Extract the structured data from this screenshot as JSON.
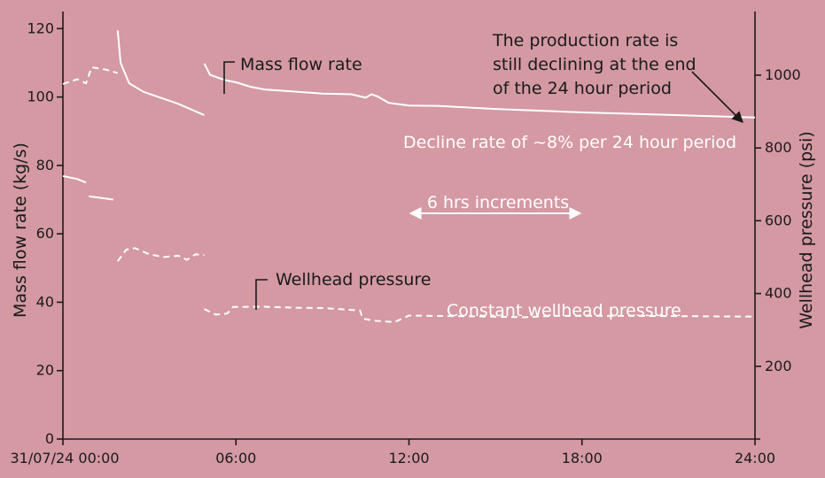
{
  "chart_data": {
    "type": "line",
    "x_axis": {
      "label": "",
      "range_hours": [
        0,
        24
      ],
      "ticks": [
        {
          "hour": 0,
          "label": "31/07/24 00:00"
        },
        {
          "hour": 6,
          "label": "06:00"
        },
        {
          "hour": 12,
          "label": "12:00"
        },
        {
          "hour": 18,
          "label": "18:00"
        },
        {
          "hour": 24,
          "label": "24:00"
        }
      ]
    },
    "y_left": {
      "label": "Mass flow rate (kg/s)",
      "range": [
        0,
        125
      ],
      "ticks": [
        0,
        20,
        40,
        60,
        80,
        100,
        120
      ]
    },
    "y_right": {
      "label": "Wellhead pressure (psi)",
      "range": [
        0,
        1175
      ],
      "ticks": [
        200,
        400,
        600,
        800,
        1000
      ]
    },
    "series": [
      {
        "name": "Mass flow rate",
        "axis": "left",
        "style": "solid",
        "segments": [
          [
            [
              0,
              76.9
            ],
            [
              0.5,
              76.0
            ],
            [
              0.8,
              75.0
            ]
          ],
          [
            [
              0.9,
              71.0
            ],
            [
              1.75,
              70.0
            ]
          ],
          [
            [
              1.9,
              119.5
            ],
            [
              2.0,
              110.0
            ],
            [
              2.3,
              104.0
            ],
            [
              2.8,
              101.5
            ],
            [
              4.0,
              98.0
            ],
            [
              4.9,
              94.7
            ]
          ],
          [
            [
              4.9,
              109.8
            ],
            [
              5.1,
              106.5
            ],
            [
              5.6,
              105.0
            ],
            [
              6.0,
              104.3
            ],
            [
              6.5,
              103.0
            ],
            [
              7.0,
              102.2
            ],
            [
              8.0,
              101.6
            ],
            [
              9.0,
              101.0
            ],
            [
              10.0,
              100.8
            ],
            [
              10.5,
              99.8
            ],
            [
              10.7,
              100.8
            ],
            [
              10.9,
              100.2
            ],
            [
              11.3,
              98.3
            ],
            [
              12.0,
              97.5
            ],
            [
              13.0,
              97.4
            ],
            [
              15.0,
              96.5
            ],
            [
              18.0,
              95.5
            ],
            [
              21.0,
              94.8
            ],
            [
              24.0,
              94.0
            ]
          ]
        ]
      },
      {
        "name": "Wellhead pressure",
        "axis": "left",
        "style": "dashed",
        "segments": [
          [
            [
              0,
              103.8
            ],
            [
              0.5,
              105.2
            ],
            [
              0.8,
              104.0
            ],
            [
              1.0,
              108.7
            ],
            [
              1.5,
              108.0
            ],
            [
              1.9,
              107.0
            ]
          ],
          [
            [
              1.9,
              52.0
            ],
            [
              2.2,
              55.4
            ],
            [
              2.5,
              55.8
            ],
            [
              3.0,
              54.0
            ],
            [
              3.5,
              53.2
            ],
            [
              4.0,
              53.6
            ],
            [
              4.3,
              52.4
            ],
            [
              4.6,
              54.0
            ],
            [
              4.9,
              53.8
            ]
          ],
          [
            [
              4.9,
              38.0
            ],
            [
              5.3,
              36.4
            ],
            [
              5.7,
              36.7
            ],
            [
              5.9,
              38.6
            ],
            [
              7.0,
              38.7
            ],
            [
              8.0,
              38.4
            ],
            [
              9.0,
              38.3
            ],
            [
              10.3,
              37.6
            ],
            [
              10.4,
              35.2
            ],
            [
              10.8,
              34.6
            ],
            [
              11.5,
              34.2
            ],
            [
              12.0,
              36.1
            ],
            [
              13.0,
              36.0
            ],
            [
              15.0,
              35.8
            ],
            [
              16.0,
              35.6
            ],
            [
              17.0,
              36.0
            ],
            [
              20.0,
              36.0
            ],
            [
              24.0,
              35.8
            ]
          ]
        ]
      }
    ],
    "annotations": {
      "mass_flow_label": "Mass flow rate",
      "wellhead_label": "Wellhead pressure",
      "production_note": [
        "The production rate is",
        "still declining at the end",
        "of the 24 hour period"
      ],
      "decline_note": "Decline rate of ~8% per 24 hour period",
      "increment_note": "6 hrs increments",
      "constant_note": "Constant wellhead pressure"
    },
    "grid": false,
    "colors": {
      "background": "#d499a3",
      "series": "#ffffff",
      "axes": "#1a1a1a"
    }
  }
}
